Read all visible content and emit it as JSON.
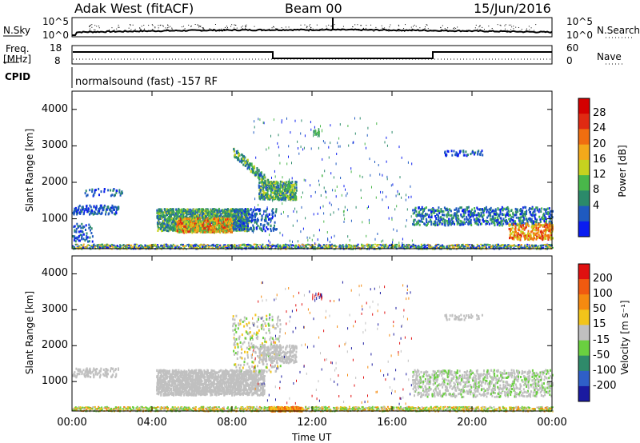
{
  "header": {
    "station": "Adak West (fitACF)",
    "beam": "Beam 00",
    "date": "15/Jun/2016"
  },
  "top_panels": {
    "nsky_label": "N.Sky",
    "nsky_ticks": [
      "10^5",
      "10^0"
    ],
    "nsearch_label": "N.Search",
    "nsearch_ticks": [
      "10^5",
      "10^0"
    ],
    "freq_label_1": "Freq.",
    "freq_label_2": "[MHz]",
    "freq_ticks": [
      "18",
      "8"
    ],
    "nave_label": "Nave",
    "nave_ticks": [
      "60",
      "0"
    ],
    "cpid_label": "CPID",
    "cpid_text": "normalsound (fast) -157 RF"
  },
  "chart_data": [
    {
      "type": "heatmap",
      "name": "power",
      "ylabel": "Slant Range [km]",
      "yticks": [
        "4000",
        "3000",
        "2000",
        "1000"
      ],
      "ylim": [
        180,
        4500
      ],
      "xlim": [
        0,
        24
      ],
      "colorbar_label": "Power [dB]",
      "colorbar_ticks": [
        "28",
        "24",
        "20",
        "16",
        "12",
        "8",
        "4"
      ],
      "colorbar_colors": [
        "#0a1cf0",
        "#1f5ac0",
        "#2b8a6a",
        "#49b74a",
        "#c6d21f",
        "#f3a91a",
        "#f06e10",
        "#e02a12",
        "#d40000"
      ]
    },
    {
      "type": "heatmap",
      "name": "velocity",
      "ylabel": "Slant Range [km]",
      "yticks": [
        "4000",
        "3000",
        "2000",
        "1000"
      ],
      "ylim": [
        180,
        4500
      ],
      "xlim": [
        0,
        24
      ],
      "xticks": [
        "00:00",
        "04:00",
        "08:00",
        "12:00",
        "16:00",
        "20:00",
        "00:00"
      ],
      "xlabel": "Time UT",
      "colorbar_label": "Velocity [m s⁻¹]",
      "colorbar_ticks": [
        "200",
        "100",
        "50",
        "15",
        "-15",
        "-50",
        "-100",
        "-200"
      ],
      "colorbar_colors": [
        "#1a1aa0",
        "#2f5fc8",
        "#2f8a6a",
        "#6ad040",
        "#c0c0c0",
        "#f2c41a",
        "#f58a10",
        "#f05a10",
        "#e01010"
      ]
    }
  ],
  "colors": {
    "ground_scatter": "#bebebe",
    "frame": "#000000"
  }
}
